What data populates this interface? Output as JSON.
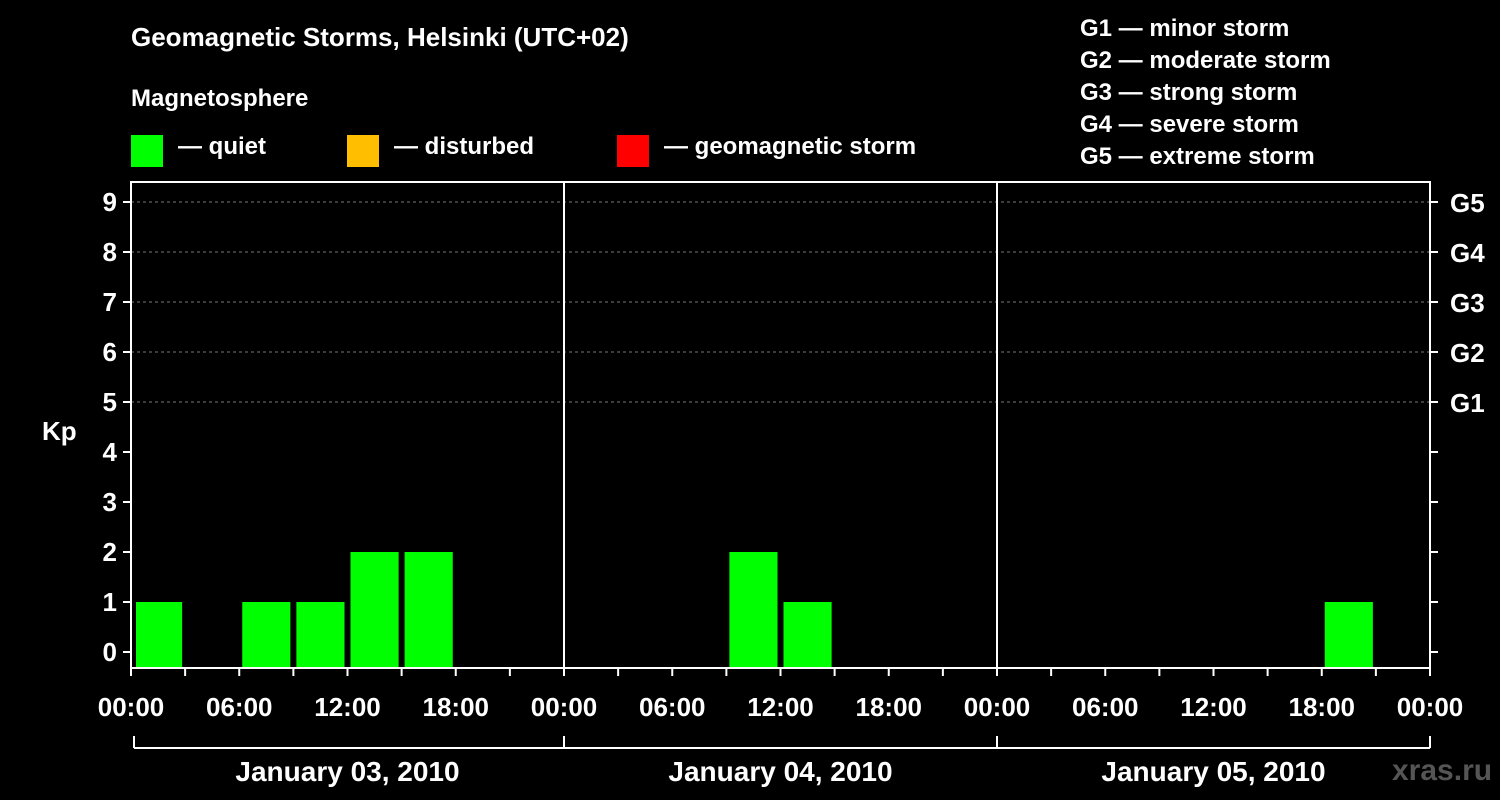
{
  "chart_data": {
    "type": "bar",
    "title": "Geomagnetic Storms, Helsinki (UTC+02)",
    "subtitle": "Magnetosphere",
    "ylabel": "Kp",
    "ylim": [
      0,
      9
    ],
    "yticks": [
      "0",
      "1",
      "2",
      "3",
      "4",
      "5",
      "6",
      "7",
      "8",
      "9"
    ],
    "storm_levels": [
      {
        "kp": 5,
        "label": "G1"
      },
      {
        "kp": 6,
        "label": "G2"
      },
      {
        "kp": 7,
        "label": "G3"
      },
      {
        "kp": 8,
        "label": "G4"
      },
      {
        "kp": 9,
        "label": "G5"
      }
    ],
    "xticks": [
      "00:00",
      "06:00",
      "12:00",
      "18:00",
      "00:00",
      "06:00",
      "12:00",
      "18:00",
      "00:00",
      "06:00",
      "12:00",
      "18:00",
      "00:00"
    ],
    "days": [
      "January 03, 2010",
      "January 04, 2010",
      "January 05, 2010"
    ],
    "bar_hours": 3,
    "bars": [
      {
        "day": 0,
        "start_hour": 0,
        "kp": 1
      },
      {
        "day": 0,
        "start_hour": 6,
        "kp": 1
      },
      {
        "day": 0,
        "start_hour": 9,
        "kp": 1
      },
      {
        "day": 0,
        "start_hour": 12,
        "kp": 2
      },
      {
        "day": 0,
        "start_hour": 15,
        "kp": 2
      },
      {
        "day": 1,
        "start_hour": 9,
        "kp": 2
      },
      {
        "day": 1,
        "start_hour": 12,
        "kp": 1
      },
      {
        "day": 2,
        "start_hour": 18,
        "kp": 1
      }
    ],
    "legend": [
      {
        "label": "— quiet",
        "color": "#00ff00"
      },
      {
        "label": "— disturbed",
        "color": "#ffbf00"
      },
      {
        "label": "— geomagnetic storm",
        "color": "#ff0000"
      }
    ],
    "g_legend": [
      "G1 — minor storm",
      "G2 — moderate storm",
      "G3 — strong storm",
      "G4 — severe storm",
      "G5 — extreme storm"
    ]
  },
  "watermark": "xras.ru"
}
